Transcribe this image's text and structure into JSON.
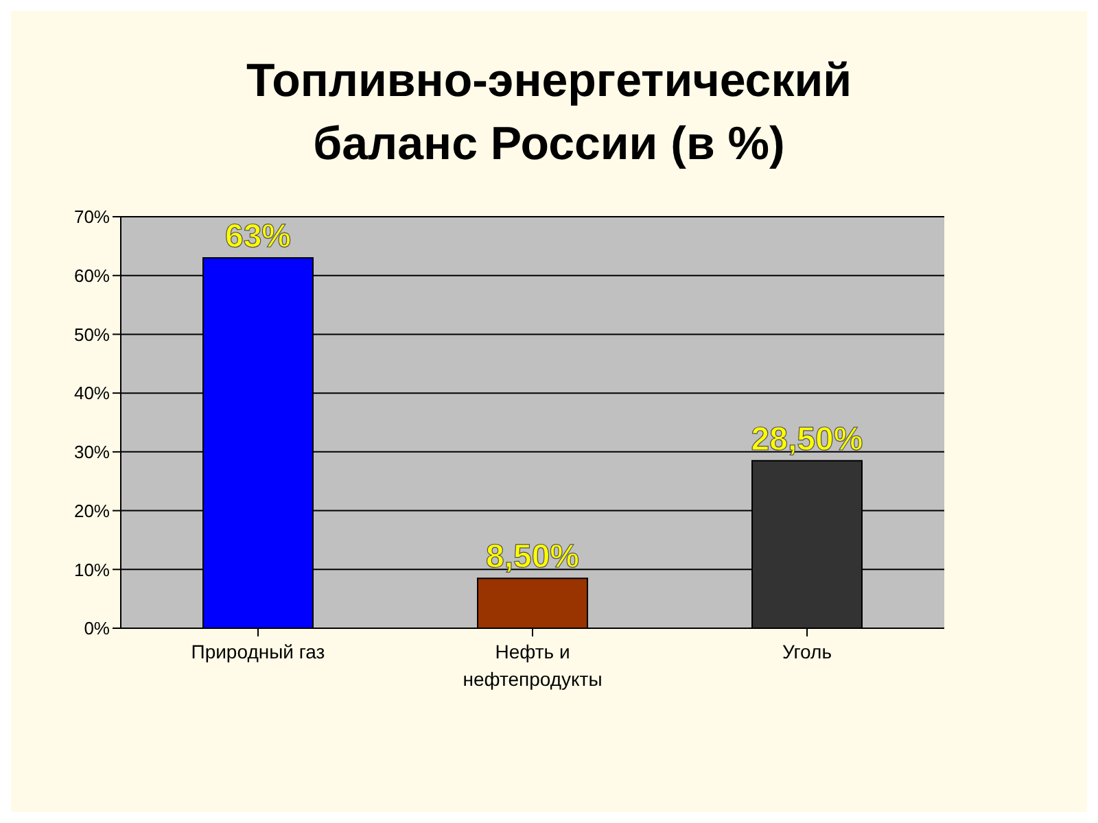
{
  "chart_data": {
    "type": "bar",
    "title": "Топливно-энергетический баланс России (в %)",
    "categories": [
      "Природный газ",
      "Нефть и нефтепродукты",
      "Уголь"
    ],
    "values": [
      63,
      8.5,
      28.5
    ],
    "colors": [
      "#0000ff",
      "#993300",
      "#333333"
    ],
    "value_labels": [
      "63%",
      "8,50%",
      "28,50%"
    ],
    "ylim": [
      0,
      70
    ],
    "yticks": [
      {
        "value": 0,
        "label": "0%"
      },
      {
        "value": 10,
        "label": "10%"
      },
      {
        "value": 20,
        "label": "20%"
      },
      {
        "value": 30,
        "label": "30%"
      },
      {
        "value": 40,
        "label": "40%"
      },
      {
        "value": 50,
        "label": "50%"
      },
      {
        "value": 60,
        "label": "60%"
      },
      {
        "value": 70,
        "label": "70%"
      }
    ],
    "grid": "y"
  }
}
